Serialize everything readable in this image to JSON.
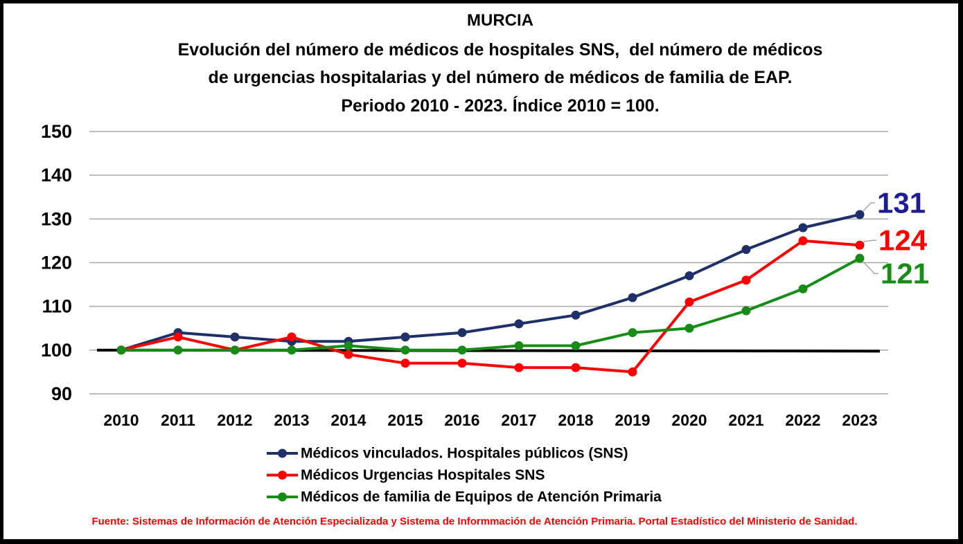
{
  "chart_data": {
    "type": "line",
    "title": "MURCIA",
    "subtitle": [
      "Evolución del número de médicos de hospitales SNS,  del número de médicos",
      "de urgencias hospitalarias y del número de médicos de familia de EAP.",
      "Periodo 2010 - 2023. Índice 2010 = 100."
    ],
    "x": [
      "2010",
      "2011",
      "2012",
      "2013",
      "2014",
      "2015",
      "2016",
      "2017",
      "2018",
      "2019",
      "2020",
      "2021",
      "2022",
      "2023"
    ],
    "ylim": [
      90,
      150
    ],
    "yticks": [
      90,
      100,
      110,
      120,
      130,
      140,
      150
    ],
    "grid": true,
    "legend_position": "bottom",
    "reference_line": {
      "value": 100,
      "color": "#000000"
    },
    "series": [
      {
        "name": "Médicos vinculados. Hospitales públicos (SNS)",
        "color": "#1f3068",
        "label_color": "#1c1c96",
        "values": [
          100,
          104,
          103,
          102,
          102,
          103,
          104,
          106,
          108,
          112,
          117,
          123,
          128,
          131
        ],
        "end_label": "131"
      },
      {
        "name": "Médicos Urgencias Hospitales SNS",
        "color": "#ff0000",
        "label_color": "#ff0000",
        "values": [
          100,
          103,
          100,
          103,
          99,
          97,
          97,
          96,
          96,
          95,
          111,
          116,
          125,
          124
        ],
        "end_label": "124"
      },
      {
        "name": "Médicos de familia de Equipos de Atención Primaria",
        "color": "#178c17",
        "label_color": "#178c17",
        "values": [
          100,
          100,
          100,
          100,
          101,
          100,
          100,
          101,
          101,
          104,
          105,
          109,
          114,
          121
        ],
        "end_label": "121"
      }
    ],
    "source": "Fuente: Sistemas de Información de Atención Especializada y Sistema de Informmación de Atención Primaria. Portal Estadístico del Ministerio de Sanidad."
  }
}
